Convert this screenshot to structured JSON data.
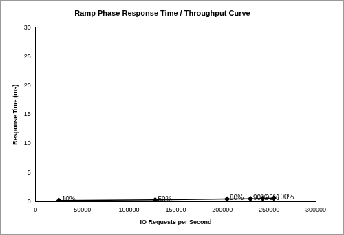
{
  "chart_data": {
    "type": "line",
    "title": "Ramp Phase Response Time / Throughput Curve",
    "x_label": "IO Requests per Second",
    "y_label": "Response Time (ms)",
    "series": [
      {
        "name": "Response Time",
        "color": "#000000",
        "marker": "diamond",
        "line_style": "solid",
        "x": [
          25000,
          128000,
          205000,
          230000,
          243000,
          255000
        ],
        "values": [
          0.2,
          0.3,
          0.45,
          0.5,
          0.55,
          0.6
        ],
        "point_labels": [
          "10%",
          "50%",
          "80%",
          "90%",
          "95%",
          "100%"
        ]
      }
    ],
    "xlim": [
      0,
      300000
    ],
    "xticks": [
      0,
      50000,
      100000,
      150000,
      200000,
      250000,
      300000
    ],
    "ylim": [
      0,
      30
    ],
    "yticks": [
      0,
      5,
      10,
      15,
      20,
      25,
      30
    ],
    "grid": false
  }
}
